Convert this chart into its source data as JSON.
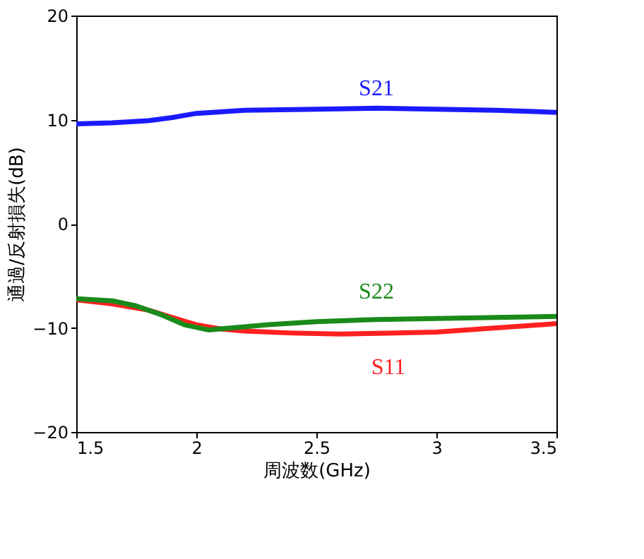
{
  "chart_data": {
    "type": "line",
    "xlabel": "周波数(GHz)",
    "ylabel": "通過/反射損失(dB)",
    "xlim": [
      1.5,
      3.5
    ],
    "xticks": [
      1.5,
      2,
      2.5,
      3,
      3.5
    ],
    "ylim": [
      -20,
      20
    ],
    "yticks": [
      -20,
      -10,
      0,
      10,
      20
    ],
    "grid": false,
    "legend": false,
    "marker": "none",
    "line_style": "solid",
    "series": [
      {
        "name": "S21",
        "color": "#1a1aff",
        "x": [
          1.5,
          1.65,
          1.8,
          1.9,
          2.0,
          2.2,
          2.5,
          2.75,
          3.0,
          3.25,
          3.5
        ],
        "values": [
          9.6,
          9.7,
          9.9,
          10.2,
          10.6,
          10.9,
          11.0,
          11.1,
          11.0,
          10.9,
          10.7
        ]
      },
      {
        "name": "S11",
        "color": "#ff2020",
        "x": [
          1.5,
          1.65,
          1.8,
          1.9,
          2.0,
          2.1,
          2.2,
          2.4,
          2.6,
          2.8,
          3.0,
          3.25,
          3.5
        ],
        "values": [
          -7.3,
          -7.7,
          -8.3,
          -9.0,
          -9.7,
          -10.1,
          -10.3,
          -10.5,
          -10.6,
          -10.5,
          -10.4,
          -10.0,
          -9.6
        ]
      },
      {
        "name": "S22",
        "color": "#1a8a1a",
        "x": [
          1.5,
          1.65,
          1.75,
          1.85,
          1.95,
          2.05,
          2.15,
          2.3,
          2.5,
          2.75,
          3.0,
          3.25,
          3.5
        ],
        "values": [
          -7.2,
          -7.4,
          -7.9,
          -8.7,
          -9.7,
          -10.2,
          -10.0,
          -9.7,
          -9.4,
          -9.2,
          -9.1,
          -9.0,
          -8.9
        ]
      }
    ]
  }
}
